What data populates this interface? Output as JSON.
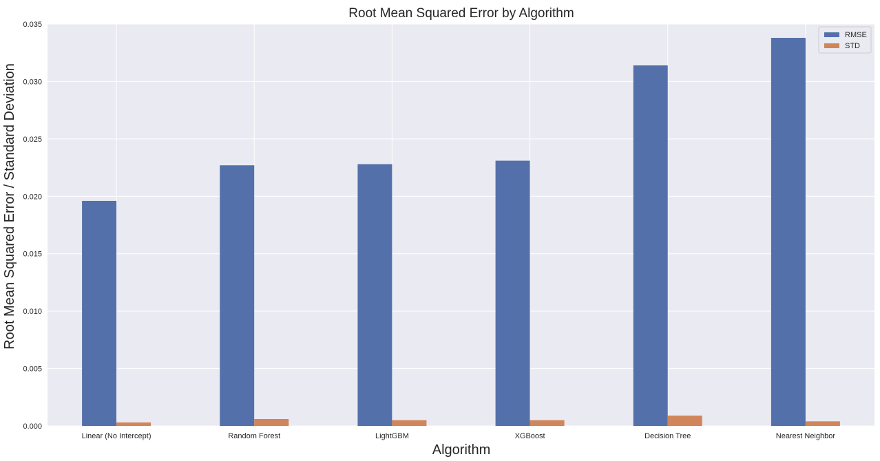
{
  "chart_data": {
    "type": "bar",
    "title": "Root Mean Squared Error by Algorithm",
    "xlabel": "Algorithm",
    "ylabel": "Root Mean Squared Error / Standard Deviation",
    "categories": [
      "Linear (No Intercept)",
      "Random Forest",
      "LightGBM",
      "XGBoost",
      "Decision Tree",
      "Nearest Neighbor"
    ],
    "series": [
      {
        "name": "RMSE",
        "color": "#5470ab",
        "values": [
          0.0196,
          0.0227,
          0.0228,
          0.0231,
          0.0314,
          0.0338
        ]
      },
      {
        "name": "STD",
        "color": "#d0865a",
        "values": [
          0.0003,
          0.0006,
          0.0005,
          0.0005,
          0.0009,
          0.0004
        ]
      }
    ],
    "ylim": [
      0,
      0.035
    ],
    "yticks": [
      "0.000",
      "0.005",
      "0.010",
      "0.015",
      "0.020",
      "0.025",
      "0.030",
      "0.035"
    ],
    "grid": true,
    "legend_position": "top-right",
    "plot_background": "#eaeaf2"
  }
}
